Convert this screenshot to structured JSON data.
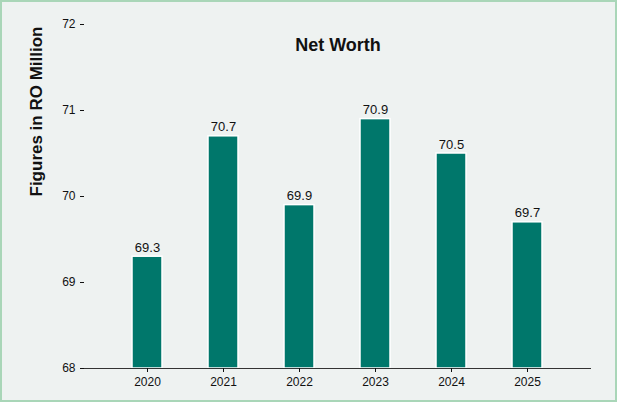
{
  "chart_data": {
    "type": "bar",
    "title": "Net Worth",
    "y_label": "Figures in RO Million",
    "categories": [
      "2020",
      "2021",
      "2022",
      "2023",
      "2024",
      "2025"
    ],
    "values": [
      69.3,
      70.7,
      69.9,
      70.9,
      70.5,
      69.7
    ],
    "color": "#00776b",
    "ylim": [
      68,
      72
    ],
    "yticks": [
      68,
      69,
      70,
      71,
      72
    ],
    "grid": false,
    "data_labels": true
  }
}
